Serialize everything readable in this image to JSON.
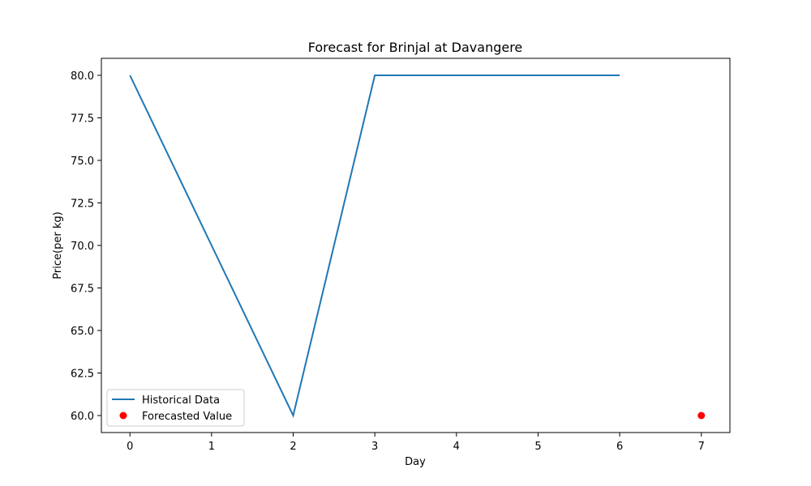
{
  "chart_data": {
    "type": "line",
    "title": "Forecast for Brinjal at Davangere",
    "xlabel": "Day",
    "ylabel": "Price(per kg)",
    "xlim": [
      -0.35,
      7.35
    ],
    "ylim": [
      59.0,
      81.0
    ],
    "xticks": [
      0,
      1,
      2,
      3,
      4,
      5,
      6,
      7
    ],
    "xtick_labels": [
      "0",
      "1",
      "2",
      "3",
      "4",
      "5",
      "6",
      "7"
    ],
    "yticks": [
      60.0,
      62.5,
      65.0,
      67.5,
      70.0,
      72.5,
      75.0,
      77.5,
      80.0
    ],
    "ytick_labels": [
      "60.0",
      "62.5",
      "65.0",
      "67.5",
      "70.0",
      "72.5",
      "75.0",
      "77.5",
      "80.0"
    ],
    "grid": false,
    "legend_position": "lower-left",
    "series": [
      {
        "name": "Historical Data",
        "kind": "line",
        "color": "#1f77b4",
        "x": [
          0,
          1,
          2,
          3,
          4,
          5,
          6
        ],
        "y": [
          80,
          70,
          60,
          80,
          80,
          80,
          80
        ]
      },
      {
        "name": "Forecasted Value",
        "kind": "scatter",
        "color": "#ff0000",
        "x": [
          7
        ],
        "y": [
          60
        ]
      }
    ]
  }
}
